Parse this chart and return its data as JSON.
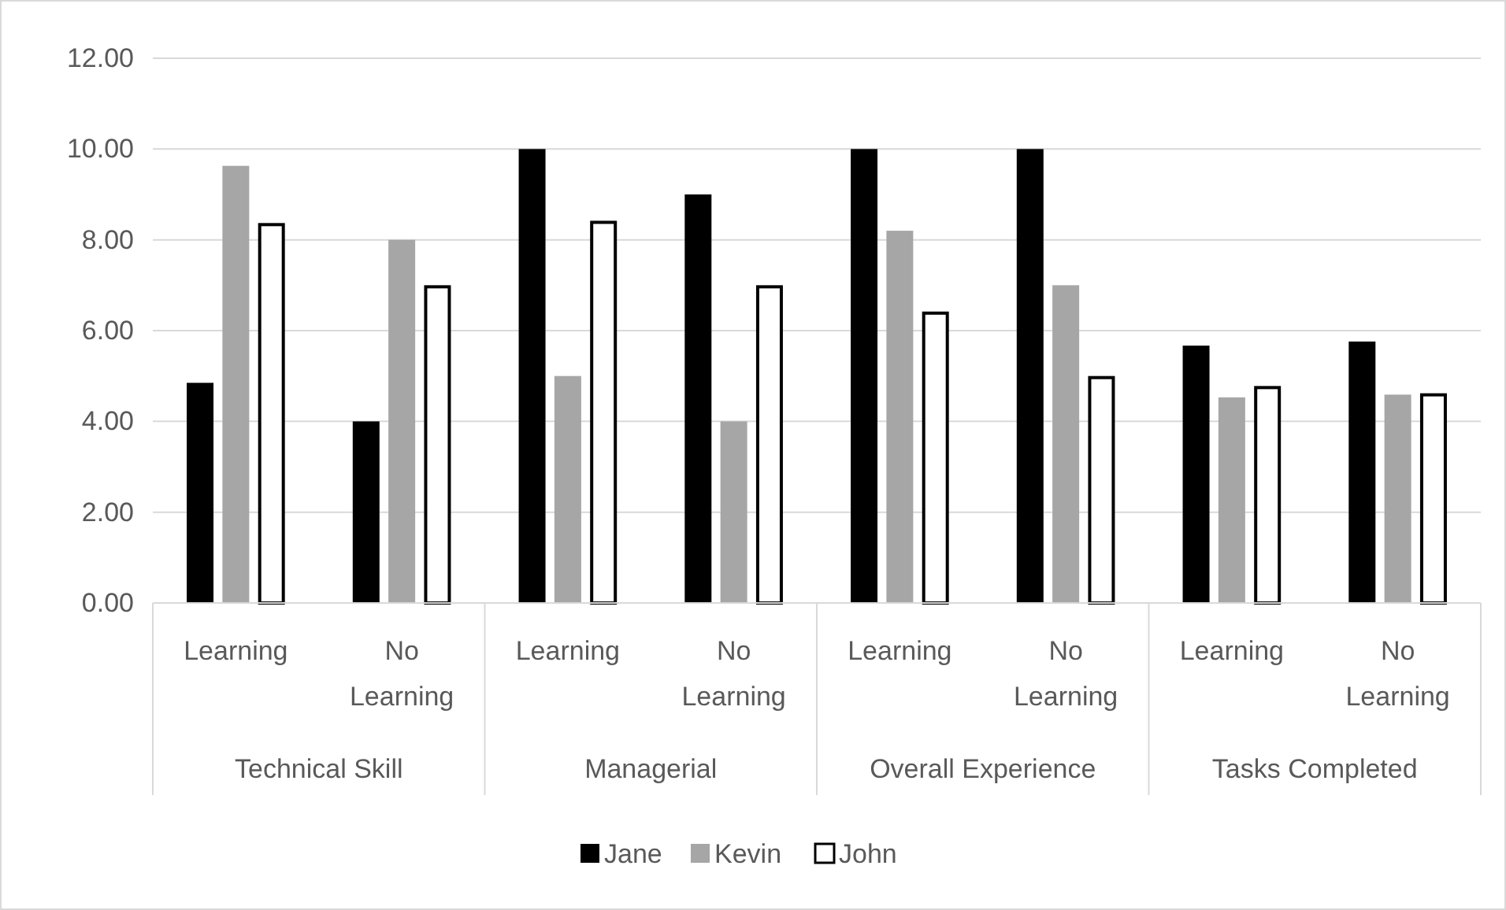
{
  "chart_data": {
    "type": "bar",
    "categories": [
      "Learning",
      "No Learning",
      "Learning",
      "No Learning",
      "Learning",
      "No Learning",
      "Learning",
      "No Learning"
    ],
    "annotations": [
      "Technical Skill",
      "Managerial",
      "Overall Experience",
      "Tasks Completed"
    ],
    "series": [
      {
        "name": "Jane",
        "color": "#000000",
        "values": [
          4.85,
          4.0,
          10.0,
          9.0,
          10.0,
          10.0,
          5.67,
          5.76
        ]
      },
      {
        "name": "Kevin",
        "color": "#a6a6a6",
        "values": [
          9.63,
          8.0,
          5.0,
          4.0,
          8.2,
          7.0,
          4.53,
          4.59
        ]
      },
      {
        "name": "John",
        "color": "#ffffff",
        "values": [
          8.37,
          7.0,
          8.42,
          7.0,
          6.42,
          5.0,
          4.78,
          4.62
        ]
      }
    ],
    "ylim": [
      0,
      12
    ],
    "yticks": [
      {
        "value": 0,
        "label": "0.00"
      },
      {
        "value": 2,
        "label": "2.00"
      },
      {
        "value": 4,
        "label": "4.00"
      },
      {
        "value": 6,
        "label": "6.00"
      },
      {
        "value": 8,
        "label": "8.00"
      },
      {
        "value": 10,
        "label": "10.00"
      },
      {
        "value": 12,
        "label": "12.00"
      }
    ],
    "grid": "y",
    "legend": "bottom"
  }
}
